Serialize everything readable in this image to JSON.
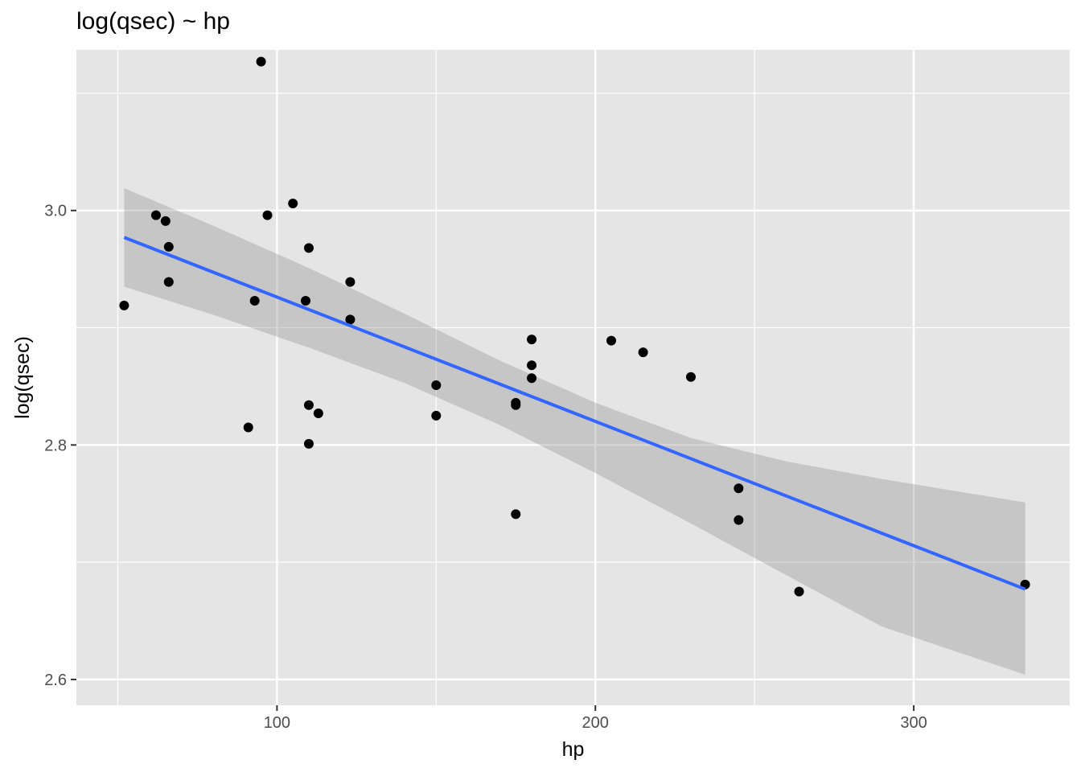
{
  "chart_data": {
    "type": "scatter",
    "title": "log(qsec) ~ hp",
    "xlabel": "hp",
    "ylabel": "log(qsec)",
    "xlim": [
      37,
      349
    ],
    "ylim": [
      2.578,
      3.137
    ],
    "x_ticks": [
      100,
      200,
      300
    ],
    "x_tick_labels": [
      "100",
      "200",
      "300"
    ],
    "y_ticks": [
      2.6,
      2.8,
      3.0
    ],
    "y_tick_labels": [
      "2.6",
      "2.8",
      "3.0"
    ],
    "grid": true,
    "points": [
      {
        "x": 52,
        "y": 2.919
      },
      {
        "x": 62,
        "y": 2.996
      },
      {
        "x": 65,
        "y": 2.991
      },
      {
        "x": 66,
        "y": 2.969
      },
      {
        "x": 66,
        "y": 2.939
      },
      {
        "x": 91,
        "y": 2.815
      },
      {
        "x": 93,
        "y": 2.923
      },
      {
        "x": 95,
        "y": 3.127
      },
      {
        "x": 97,
        "y": 2.996
      },
      {
        "x": 105,
        "y": 3.006
      },
      {
        "x": 109,
        "y": 2.923
      },
      {
        "x": 110,
        "y": 2.801
      },
      {
        "x": 110,
        "y": 2.968
      },
      {
        "x": 110,
        "y": 2.834
      },
      {
        "x": 113,
        "y": 2.827
      },
      {
        "x": 123,
        "y": 2.939
      },
      {
        "x": 123,
        "y": 2.907
      },
      {
        "x": 150,
        "y": 2.851
      },
      {
        "x": 150,
        "y": 2.825
      },
      {
        "x": 175,
        "y": 2.836
      },
      {
        "x": 175,
        "y": 2.834
      },
      {
        "x": 175,
        "y": 2.741
      },
      {
        "x": 180,
        "y": 2.89
      },
      {
        "x": 180,
        "y": 2.868
      },
      {
        "x": 180,
        "y": 2.857
      },
      {
        "x": 205,
        "y": 2.889
      },
      {
        "x": 215,
        "y": 2.879
      },
      {
        "x": 230,
        "y": 2.858
      },
      {
        "x": 245,
        "y": 2.763
      },
      {
        "x": 245,
        "y": 2.736
      },
      {
        "x": 264,
        "y": 2.675
      },
      {
        "x": 335,
        "y": 2.681
      }
    ],
    "fit_line": {
      "x": [
        52,
        335
      ],
      "y": [
        2.977,
        2.677
      ]
    },
    "confidence_band": {
      "x": [
        52,
        80,
        110,
        140,
        170,
        200,
        230,
        260,
        290,
        335
      ],
      "lower": [
        2.935,
        2.911,
        2.883,
        2.853,
        2.817,
        2.776,
        2.733,
        2.689,
        2.645,
        2.604
      ],
      "upper": [
        3.019,
        2.987,
        2.951,
        2.912,
        2.872,
        2.836,
        2.806,
        2.786,
        2.771,
        2.751
      ]
    },
    "colors": {
      "panel": "#e5e5e5",
      "grid": "#ffffff",
      "points": "#000000",
      "fit_line": "#3366ff",
      "band": "#999999"
    }
  }
}
